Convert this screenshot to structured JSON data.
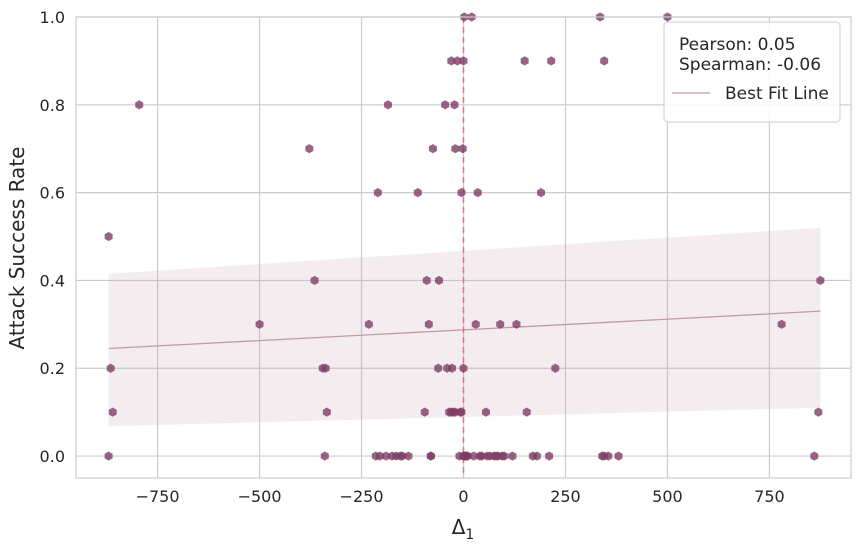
{
  "chart_data": {
    "type": "scatter",
    "title": "",
    "xlabel": "Δ",
    "xlabel_subscript": "1",
    "ylabel": "Attack Success Rate",
    "xlim": [
      -950,
      950
    ],
    "ylim": [
      -0.05,
      1.0
    ],
    "x_ticks": [
      -750,
      -500,
      -250,
      0,
      250,
      500,
      750
    ],
    "x_tick_labels": [
      "−750",
      "−500",
      "−250",
      "0",
      "250",
      "500",
      "750"
    ],
    "y_ticks": [
      0.0,
      0.2,
      0.4,
      0.6,
      0.8,
      1.0
    ],
    "y_tick_labels": [
      "0.0",
      "0.2",
      "0.4",
      "0.6",
      "0.8",
      "1.0"
    ],
    "grid": true,
    "legend_position": "top-right",
    "annotations": {
      "pearson": "Pearson: 0.05",
      "spearman": "Spearman: -0.06"
    },
    "vline": {
      "x": 0,
      "color": "#e8677a",
      "style": "dashed"
    },
    "best_fit": {
      "name": "Best Fit Line",
      "x": [
        -870,
        875
      ],
      "y": [
        0.245,
        0.33
      ],
      "color": "#c49aa8",
      "ci_upper": [
        0.415,
        0.52
      ],
      "ci_lower": [
        0.068,
        0.11
      ]
    },
    "points": {
      "color": "#7e3d65",
      "x": [
        -870,
        -865,
        -860,
        -870,
        -795,
        -500,
        -378,
        -365,
        -345,
        -338,
        -335,
        -340,
        -232,
        -210,
        -205,
        -215,
        -185,
        -190,
        -175,
        -165,
        -155,
        -150,
        -135,
        -112,
        -95,
        -90,
        -85,
        -80,
        -75,
        -62,
        -60,
        -80,
        -45,
        -40,
        -35,
        -30,
        -28,
        -25,
        -22,
        -20,
        -30,
        -20,
        -15,
        -10,
        -8,
        -5,
        -2,
        0,
        2,
        5,
        8,
        10,
        0,
        -5,
        5,
        0,
        2,
        0,
        20,
        25,
        30,
        35,
        40,
        45,
        55,
        58,
        65,
        75,
        80,
        85,
        90,
        95,
        100,
        120,
        130,
        150,
        155,
        170,
        180,
        190,
        210,
        215,
        225,
        335,
        340,
        345,
        355,
        380,
        500,
        780,
        860,
        870,
        875,
        345
      ],
      "y": [
        0.5,
        0.2,
        0.1,
        0.0,
        0.8,
        0.3,
        0.7,
        0.4,
        0.2,
        0.2,
        0.1,
        0.0,
        0.3,
        0.6,
        0.0,
        0.0,
        0.8,
        0.0,
        0.0,
        0.0,
        0.0,
        0.0,
        0.0,
        0.6,
        0.1,
        0.4,
        0.3,
        0.0,
        0.7,
        0.2,
        0.4,
        0.0,
        0.8,
        0.2,
        0.1,
        0.9,
        0.2,
        0.1,
        0.8,
        0.7,
        0.1,
        0.1,
        0.9,
        0.0,
        0.1,
        0.6,
        0.7,
        0.2,
        1.0,
        0.0,
        0.0,
        0.0,
        0.0,
        0.1,
        0.0,
        0.0,
        0.0,
        0.9,
        1.0,
        0.0,
        0.3,
        0.6,
        0.0,
        0.0,
        0.1,
        0.0,
        0.0,
        0.0,
        0.0,
        0.0,
        0.3,
        0.0,
        0.0,
        0.0,
        0.3,
        0.9,
        0.1,
        0.0,
        0.0,
        0.6,
        0.0,
        0.9,
        0.2,
        1.0,
        0.0,
        0.0,
        0.0,
        0.0,
        1.0,
        0.3,
        0.0,
        0.1,
        0.4,
        0.9
      ]
    }
  }
}
